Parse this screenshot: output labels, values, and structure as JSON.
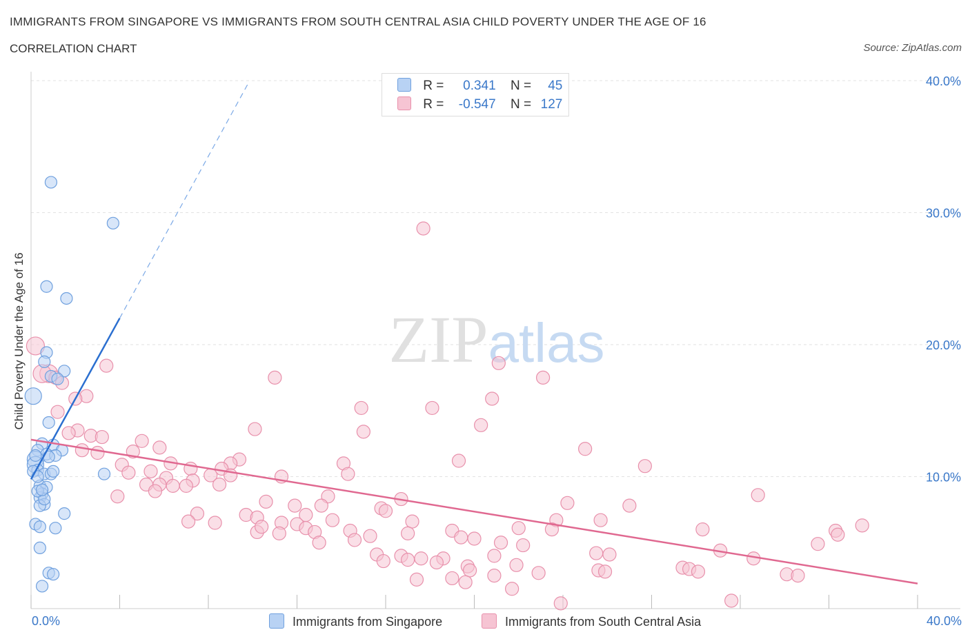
{
  "header": {
    "title": "IMMIGRANTS FROM SINGAPORE VS IMMIGRANTS FROM SOUTH CENTRAL ASIA CHILD POVERTY UNDER THE AGE OF 16",
    "subtitle": "CORRELATION CHART",
    "source": "Source: ZipAtlas.com"
  },
  "watermark": "ZIPatlas",
  "legend": {
    "row1": {
      "r_label": "R =",
      "r_value": "0.341",
      "n_label": "N =",
      "n_value": "45"
    },
    "row2": {
      "r_label": "R =",
      "r_value": "-0.547",
      "n_label": "N =",
      "n_value": "127"
    }
  },
  "colors": {
    "blue_fill": "#b8d2f4",
    "blue_stroke": "#6fa0de",
    "blue_line": "#2b6fd0",
    "pink_fill": "#f6c4d3",
    "pink_stroke": "#e890ab",
    "pink_line": "#e06890",
    "axis_text": "#3a78c9"
  },
  "chart_data": {
    "type": "scatter",
    "title": "IMMIGRANTS FROM SINGAPORE VS IMMIGRANTS FROM SOUTH CENTRAL ASIA CHILD POVERTY UNDER THE AGE OF 16",
    "xlabel": "",
    "ylabel": "Child Poverty Under the Age of 16",
    "xlim": [
      0,
      40
    ],
    "ylim": [
      0,
      40
    ],
    "x_tick_labels": [
      "0.0%",
      "40.0%"
    ],
    "y_ticks": [
      10,
      20,
      30,
      40
    ],
    "y_tick_labels": [
      "10.0%",
      "20.0%",
      "30.0%",
      "40.0%"
    ],
    "grid": true,
    "series": [
      {
        "name": "Immigrants from Singapore",
        "R": 0.341,
        "N": 45,
        "trend": {
          "x0": 0.0,
          "y0": 9.8,
          "x1": 4.0,
          "y1": 22.0,
          "dash_to_x": 9.8,
          "dash_to_y": 39.8
        },
        "points": [
          [
            0.9,
            32.3
          ],
          [
            3.7,
            29.2
          ],
          [
            0.7,
            24.4
          ],
          [
            1.6,
            23.5
          ],
          [
            0.7,
            19.4
          ],
          [
            0.6,
            18.7
          ],
          [
            1.5,
            18.0
          ],
          [
            0.9,
            17.6
          ],
          [
            1.2,
            17.4
          ],
          [
            0.1,
            16.1
          ],
          [
            0.8,
            14.1
          ],
          [
            0.5,
            12.5
          ],
          [
            1.0,
            12.4
          ],
          [
            1.4,
            12.0
          ],
          [
            0.3,
            12.0
          ],
          [
            0.7,
            11.7
          ],
          [
            1.1,
            11.6
          ],
          [
            0.2,
            11.3
          ],
          [
            0.2,
            10.9
          ],
          [
            0.3,
            10.5
          ],
          [
            0.1,
            10.4
          ],
          [
            0.6,
            10.2
          ],
          [
            0.9,
            10.2
          ],
          [
            3.3,
            10.2
          ],
          [
            0.4,
            9.3
          ],
          [
            0.7,
            9.2
          ],
          [
            0.5,
            8.7
          ],
          [
            0.4,
            8.4
          ],
          [
            0.6,
            7.9
          ],
          [
            0.4,
            7.8
          ],
          [
            1.5,
            7.2
          ],
          [
            0.2,
            6.4
          ],
          [
            0.4,
            6.2
          ],
          [
            1.1,
            6.1
          ],
          [
            0.4,
            4.6
          ],
          [
            0.8,
            2.7
          ],
          [
            1.0,
            2.6
          ],
          [
            0.5,
            1.7
          ],
          [
            0.3,
            10.0
          ],
          [
            0.6,
            8.3
          ],
          [
            0.2,
            11.6
          ],
          [
            0.8,
            11.5
          ],
          [
            0.3,
            8.9
          ],
          [
            0.5,
            9.0
          ],
          [
            1.0,
            10.4
          ]
        ]
      },
      {
        "name": "Immigrants from South Central Asia",
        "R": -0.547,
        "N": 127,
        "trend": {
          "x0": 0.0,
          "y0": 12.8,
          "x1": 40.0,
          "y1": 1.9
        },
        "points": [
          [
            17.7,
            28.8
          ],
          [
            0.2,
            19.9
          ],
          [
            3.4,
            18.4
          ],
          [
            21.1,
            18.6
          ],
          [
            0.8,
            17.8
          ],
          [
            0.5,
            17.8
          ],
          [
            1.1,
            17.5
          ],
          [
            11.0,
            17.5
          ],
          [
            23.1,
            17.5
          ],
          [
            1.4,
            17.1
          ],
          [
            2.5,
            16.1
          ],
          [
            2.0,
            15.9
          ],
          [
            20.8,
            15.9
          ],
          [
            14.9,
            15.2
          ],
          [
            18.1,
            15.2
          ],
          [
            1.2,
            14.9
          ],
          [
            20.3,
            13.9
          ],
          [
            2.1,
            13.5
          ],
          [
            10.1,
            13.6
          ],
          [
            1.7,
            13.3
          ],
          [
            15.0,
            13.4
          ],
          [
            2.7,
            13.1
          ],
          [
            3.2,
            13.0
          ],
          [
            5.0,
            12.7
          ],
          [
            5.8,
            12.2
          ],
          [
            25.0,
            12.1
          ],
          [
            2.3,
            12.0
          ],
          [
            4.6,
            11.9
          ],
          [
            3.0,
            11.8
          ],
          [
            9.4,
            11.3
          ],
          [
            6.3,
            11.0
          ],
          [
            19.3,
            11.2
          ],
          [
            9.0,
            11.0
          ],
          [
            4.1,
            10.9
          ],
          [
            14.1,
            11.0
          ],
          [
            27.7,
            10.8
          ],
          [
            7.2,
            10.6
          ],
          [
            8.6,
            10.6
          ],
          [
            5.4,
            10.4
          ],
          [
            4.4,
            10.3
          ],
          [
            8.1,
            10.1
          ],
          [
            9.0,
            10.1
          ],
          [
            14.3,
            10.2
          ],
          [
            11.3,
            10.0
          ],
          [
            6.1,
            9.9
          ],
          [
            7.3,
            9.7
          ],
          [
            5.8,
            9.4
          ],
          [
            5.2,
            9.4
          ],
          [
            8.5,
            9.4
          ],
          [
            6.4,
            9.3
          ],
          [
            7.0,
            9.3
          ],
          [
            5.6,
            8.9
          ],
          [
            3.9,
            8.5
          ],
          [
            13.4,
            8.5
          ],
          [
            32.8,
            8.6
          ],
          [
            16.7,
            8.3
          ],
          [
            10.6,
            8.1
          ],
          [
            11.9,
            7.8
          ],
          [
            13.1,
            7.8
          ],
          [
            24.2,
            8.0
          ],
          [
            27.0,
            7.8
          ],
          [
            15.8,
            7.6
          ],
          [
            16.0,
            7.4
          ],
          [
            12.4,
            7.1
          ],
          [
            7.5,
            7.2
          ],
          [
            9.7,
            7.1
          ],
          [
            10.2,
            6.9
          ],
          [
            23.7,
            6.7
          ],
          [
            25.7,
            6.7
          ],
          [
            13.6,
            6.7
          ],
          [
            17.2,
            6.6
          ],
          [
            7.1,
            6.6
          ],
          [
            12.0,
            6.4
          ],
          [
            8.3,
            6.5
          ],
          [
            11.3,
            6.5
          ],
          [
            22.0,
            6.1
          ],
          [
            23.5,
            6.0
          ],
          [
            30.3,
            6.0
          ],
          [
            12.4,
            6.1
          ],
          [
            14.4,
            5.9
          ],
          [
            11.2,
            5.7
          ],
          [
            12.8,
            5.8
          ],
          [
            10.2,
            5.8
          ],
          [
            17.0,
            5.7
          ],
          [
            19.0,
            5.9
          ],
          [
            15.3,
            5.5
          ],
          [
            20.0,
            5.3
          ],
          [
            14.6,
            5.2
          ],
          [
            19.4,
            5.4
          ],
          [
            21.2,
            5.0
          ],
          [
            13.0,
            5.0
          ],
          [
            22.2,
            4.8
          ],
          [
            36.3,
            5.9
          ],
          [
            37.5,
            6.3
          ],
          [
            36.4,
            5.6
          ],
          [
            35.5,
            4.9
          ],
          [
            31.1,
            4.4
          ],
          [
            15.6,
            4.1
          ],
          [
            18.6,
            3.8
          ],
          [
            20.9,
            4.0
          ],
          [
            16.7,
            4.0
          ],
          [
            17.0,
            3.7
          ],
          [
            25.5,
            4.2
          ],
          [
            26.1,
            4.1
          ],
          [
            32.6,
            3.8
          ],
          [
            18.3,
            3.5
          ],
          [
            19.7,
            3.2
          ],
          [
            19.8,
            2.9
          ],
          [
            22.9,
            2.7
          ],
          [
            25.6,
            2.9
          ],
          [
            29.4,
            3.1
          ],
          [
            29.7,
            3.0
          ],
          [
            34.1,
            2.6
          ],
          [
            19.0,
            2.3
          ],
          [
            17.4,
            2.2
          ],
          [
            20.9,
            2.5
          ],
          [
            25.9,
            2.8
          ],
          [
            30.1,
            2.8
          ],
          [
            34.6,
            2.5
          ],
          [
            19.6,
            2.0
          ],
          [
            21.7,
            1.5
          ],
          [
            23.9,
            0.4
          ],
          [
            31.6,
            0.6
          ],
          [
            17.6,
            3.8
          ],
          [
            15.9,
            3.6
          ],
          [
            21.9,
            3.3
          ],
          [
            10.4,
            6.2
          ]
        ]
      }
    ]
  },
  "x_axis_labels": {
    "left": "0.0%",
    "right": "40.0%"
  },
  "bottom_legend": {
    "item1": "Immigrants from Singapore",
    "item2": "Immigrants from South Central Asia"
  }
}
